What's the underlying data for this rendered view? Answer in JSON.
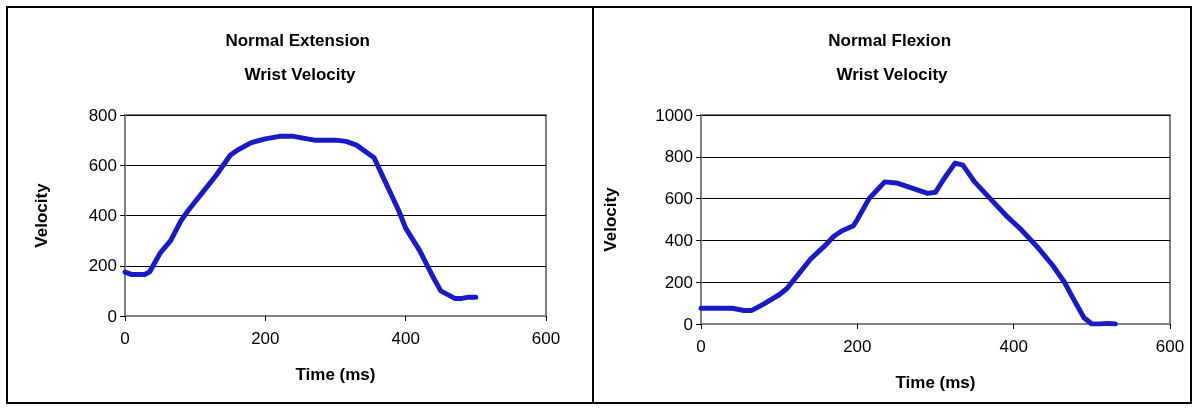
{
  "chart_data": [
    {
      "type": "line",
      "title": "Normal Extension Wrist Velocity",
      "xlabel": "Time (ms)",
      "ylabel": "Velocity",
      "xlim": [
        0,
        600
      ],
      "xticks": [
        0,
        200,
        400,
        600
      ],
      "ylim": [
        0,
        800
      ],
      "yticks": [
        0,
        200,
        400,
        600,
        800
      ],
      "grid": "y",
      "marker": "none",
      "line_style": "solid",
      "series": [
        {
          "color": "#1a1ac8",
          "x": [
            0,
            10,
            28,
            35,
            50,
            65,
            80,
            90,
            110,
            130,
            145,
            150,
            160,
            180,
            200,
            220,
            240,
            260,
            270,
            300,
            315,
            330,
            345,
            355,
            370,
            390,
            400,
            420,
            440,
            450,
            470,
            480,
            490,
            500
          ],
          "values": [
            175,
            165,
            165,
            175,
            250,
            300,
            380,
            420,
            490,
            560,
            620,
            640,
            660,
            690,
            705,
            715,
            715,
            705,
            700,
            700,
            695,
            680,
            650,
            630,
            540,
            420,
            350,
            260,
            150,
            100,
            70,
            70,
            75,
            75
          ]
        }
      ]
    },
    {
      "type": "line",
      "title": "Normal Flexion Wrist Velocity",
      "xlabel": "Time (ms)",
      "ylabel": "Velocity",
      "xlim": [
        0,
        600
      ],
      "xticks": [
        0,
        200,
        400,
        600
      ],
      "ylim": [
        0,
        1000
      ],
      "yticks": [
        0,
        200,
        400,
        600,
        800,
        1000
      ],
      "grid": "y",
      "marker": "none",
      "line_style": "solid",
      "series": [
        {
          "color": "#1a1ac8",
          "x": [
            0,
            40,
            55,
            65,
            80,
            100,
            110,
            125,
            140,
            160,
            170,
            180,
            195,
            200,
            215,
            225,
            235,
            250,
            270,
            290,
            300,
            310,
            325,
            335,
            350,
            370,
            390,
            410,
            430,
            450,
            465,
            475,
            490,
            500,
            510,
            520,
            530
          ],
          "values": [
            75,
            75,
            65,
            65,
            95,
            140,
            170,
            240,
            310,
            380,
            420,
            445,
            470,
            500,
            600,
            640,
            680,
            675,
            650,
            625,
            630,
            690,
            770,
            760,
            680,
            600,
            520,
            450,
            370,
            280,
            200,
            130,
            30,
            0,
            0,
            3,
            0
          ]
        }
      ]
    }
  ]
}
